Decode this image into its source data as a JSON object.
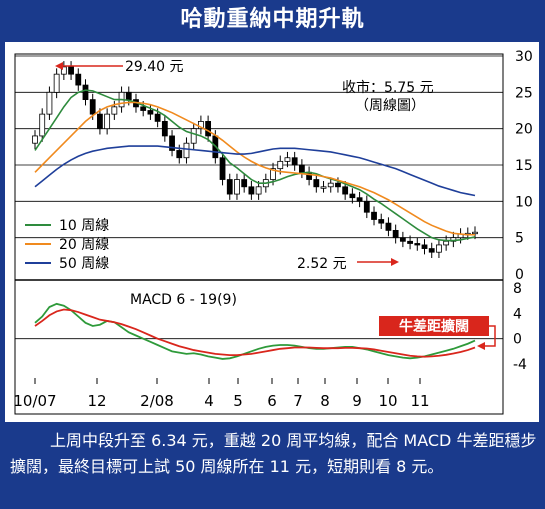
{
  "title": "哈動重納中期升軌",
  "caption": "上周中段升至 6.34 元，重越 20 周平均線，配合 MACD 牛差距穩步擴闊，最終目標可上試 50 周線所在 11 元，短期則看 8 元。",
  "colors": {
    "frame": "#1a3a8c",
    "ma10": "#2e8b3d",
    "ma20": "#f08a1e",
    "ma50": "#1f3f9a",
    "macd": "#2e9a3a",
    "signal": "#d9261c",
    "arrow": "#d9261c",
    "bull_box": "#d9261c"
  },
  "annotations": {
    "high_label": "29.40 元",
    "low_label": "2.52 元",
    "close_label": "收市：5.75 元",
    "chart_kind_label": "（周線圖）",
    "macd_label": "MACD 6 - 19(9)",
    "macd_callout": "牛差距擴闊"
  },
  "chart_data": {
    "type": "line",
    "subtype": "weekly-candlestick",
    "x_tick_labels": [
      "10/07",
      "12",
      "2/08",
      "4",
      "5",
      "6",
      "7",
      "8",
      "9",
      "10",
      "11"
    ],
    "price_axis": {
      "ticks": [
        "30",
        "25",
        "20",
        "15",
        "10",
        "5",
        "0"
      ],
      "ylim": [
        0,
        30
      ]
    },
    "macd_axis": {
      "ticks": [
        "8",
        "4",
        "0",
        "-4"
      ],
      "ylim": [
        -4,
        8
      ]
    },
    "legend": [
      "10 周線",
      "20 周線",
      "50 周線"
    ],
    "price_close": [
      19,
      22,
      25,
      27.5,
      28.5,
      27.5,
      26,
      24,
      22,
      20,
      22,
      23,
      25,
      24,
      23,
      22.5,
      22,
      21,
      19,
      17,
      16,
      18,
      20,
      21,
      19,
      16,
      13,
      11,
      13,
      12,
      11,
      12,
      13,
      14.5,
      15.5,
      16,
      15,
      14,
      13,
      12,
      12,
      12.5,
      12,
      11,
      10.5,
      10,
      8.5,
      7.5,
      7,
      6,
      5,
      4.5,
      4.2,
      4,
      3.5,
      3,
      4,
      4.5,
      5,
      5.5,
      5.6,
      5.75
    ],
    "price_high": 29.4,
    "price_low": 2.52,
    "price_last": 5.75,
    "ma10": [
      17,
      18.5,
      20,
      21.5,
      23,
      24.3,
      25,
      25.3,
      25.2,
      24.8,
      24.4,
      24,
      24,
      23.9,
      23.6,
      23.2,
      22.8,
      22.4,
      21.8,
      21,
      20.2,
      19.6,
      19.3,
      19,
      18.5,
      17.6,
      16.5,
      15.3,
      14.6,
      13.8,
      13,
      12.5,
      12.5,
      12.7,
      13,
      13.4,
      13.7,
      13.9,
      14,
      13.8,
      13.4,
      13.1,
      12.8,
      12.4,
      12,
      11.6,
      11,
      10.3,
      9.7,
      9,
      8.3,
      7.6,
      6.9,
      6.2,
      5.6,
      5,
      4.7,
      4.6,
      4.6,
      4.7,
      4.9,
      5.1
    ],
    "ma20": [
      14,
      15,
      16,
      17,
      18,
      19,
      20,
      21,
      21.8,
      22.5,
      23,
      23.3,
      23.5,
      23.6,
      23.6,
      23.5,
      23.3,
      23,
      22.6,
      22.2,
      21.7,
      21.2,
      20.7,
      20.2,
      19.7,
      19.1,
      18.4,
      17.6,
      16.8,
      16.1,
      15.5,
      15,
      14.6,
      14.3,
      14.1,
      14,
      13.9,
      13.8,
      13.7,
      13.6,
      13.4,
      13.2,
      12.9,
      12.6,
      12.3,
      12,
      11.6,
      11.2,
      10.7,
      10.2,
      9.6,
      9,
      8.4,
      7.8,
      7.2,
      6.7,
      6.3,
      5.9,
      5.6,
      5.5,
      5.4,
      5.4
    ],
    "ma50": [
      12,
      12.8,
      13.6,
      14.4,
      15.1,
      15.7,
      16.2,
      16.6,
      16.9,
      17.1,
      17.3,
      17.4,
      17.5,
      17.6,
      17.6,
      17.6,
      17.6,
      17.6,
      17.5,
      17.4,
      17.3,
      17.2,
      17.1,
      17,
      16.9,
      16.8,
      16.7,
      16.6,
      16.5,
      16.5,
      16.6,
      16.8,
      17,
      17.2,
      17.3,
      17.3,
      17.3,
      17.2,
      17.1,
      17,
      16.9,
      16.8,
      16.6,
      16.4,
      16.2,
      16,
      15.7,
      15.4,
      15.1,
      14.8,
      14.5,
      14.1,
      13.7,
      13.3,
      12.9,
      12.5,
      12.1,
      11.8,
      11.5,
      11.2,
      11,
      10.8
    ],
    "macd": [
      2.5,
      3.5,
      5,
      5.5,
      5.2,
      4.5,
      3.5,
      2.5,
      2,
      2.2,
      2.8,
      2.6,
      1.8,
      1,
      0.5,
      0,
      -0.5,
      -1,
      -1.5,
      -2,
      -2.2,
      -2.4,
      -2.3,
      -2.5,
      -2.8,
      -3,
      -3.2,
      -3.1,
      -2.8,
      -2.4,
      -2,
      -1.6,
      -1.3,
      -1.1,
      -1,
      -1,
      -1.1,
      -1.3,
      -1.5,
      -1.6,
      -1.6,
      -1.5,
      -1.4,
      -1.3,
      -1.3,
      -1.5,
      -1.7,
      -2,
      -2.3,
      -2.6,
      -2.8,
      -3,
      -3.1,
      -3,
      -2.8,
      -2.5,
      -2.2,
      -1.9,
      -1.6,
      -1.2,
      -0.8,
      -0.3
    ],
    "signal": [
      2,
      2.8,
      3.7,
      4.3,
      4.6,
      4.5,
      4.2,
      3.8,
      3.4,
      3,
      2.8,
      2.6,
      2.3,
      1.9,
      1.5,
      1,
      0.5,
      0,
      -0.4,
      -0.8,
      -1.2,
      -1.5,
      -1.8,
      -2,
      -2.2,
      -2.4,
      -2.5,
      -2.6,
      -2.6,
      -2.5,
      -2.4,
      -2.2,
      -2,
      -1.8,
      -1.6,
      -1.5,
      -1.4,
      -1.4,
      -1.4,
      -1.45,
      -1.5,
      -1.5,
      -1.5,
      -1.45,
      -1.45,
      -1.5,
      -1.55,
      -1.7,
      -1.9,
      -2.1,
      -2.3,
      -2.5,
      -2.7,
      -2.8,
      -2.85,
      -2.8,
      -2.7,
      -2.55,
      -2.35,
      -2.1,
      -1.8,
      -1.4
    ]
  }
}
